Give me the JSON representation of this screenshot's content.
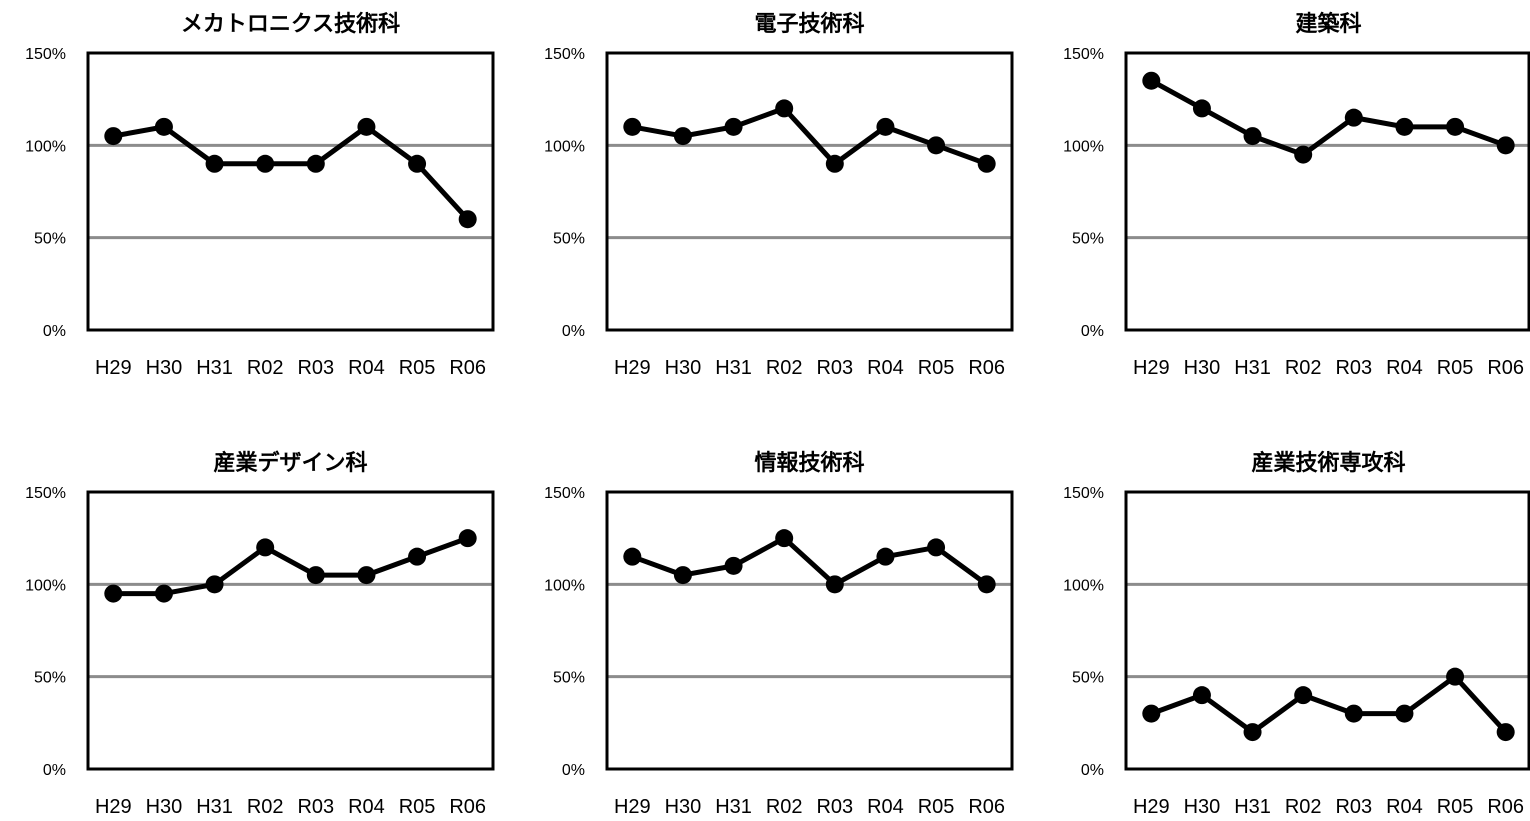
{
  "chart_data": [
    {
      "type": "line",
      "title": "メカトロニクス技術科",
      "categories": [
        "H29",
        "H30",
        "H31",
        "R02",
        "R03",
        "R04",
        "R05",
        "R06"
      ],
      "series": [
        {
          "values": [
            105,
            110,
            90,
            90,
            90,
            110,
            90,
            60
          ]
        }
      ],
      "ylim": [
        0,
        150
      ],
      "yticks": [
        "0%",
        "50%",
        "100%",
        "150%"
      ],
      "grid": true
    },
    {
      "type": "line",
      "title": "電子技術科",
      "categories": [
        "H29",
        "H30",
        "H31",
        "R02",
        "R03",
        "R04",
        "R05",
        "R06"
      ],
      "series": [
        {
          "values": [
            110,
            105,
            110,
            120,
            90,
            110,
            100,
            90
          ]
        }
      ],
      "ylim": [
        0,
        150
      ],
      "yticks": [
        "0%",
        "50%",
        "100%",
        "150%"
      ],
      "grid": true
    },
    {
      "type": "line",
      "title": "建築科",
      "categories": [
        "H29",
        "H30",
        "H31",
        "R02",
        "R03",
        "R04",
        "R05",
        "R06"
      ],
      "series": [
        {
          "values": [
            135,
            120,
            105,
            95,
            115,
            110,
            110,
            100
          ]
        }
      ],
      "ylim": [
        0,
        150
      ],
      "yticks": [
        "0%",
        "50%",
        "100%",
        "150%"
      ],
      "grid": true
    },
    {
      "type": "line",
      "title": "産業デザイン科",
      "categories": [
        "H29",
        "H30",
        "H31",
        "R02",
        "R03",
        "R04",
        "R05",
        "R06"
      ],
      "series": [
        {
          "values": [
            95,
            95,
            100,
            120,
            105,
            105,
            115,
            125
          ]
        }
      ],
      "ylim": [
        0,
        150
      ],
      "yticks": [
        "0%",
        "50%",
        "100%",
        "150%"
      ],
      "grid": true
    },
    {
      "type": "line",
      "title": "情報技術科",
      "categories": [
        "H29",
        "H30",
        "H31",
        "R02",
        "R03",
        "R04",
        "R05",
        "R06"
      ],
      "series": [
        {
          "values": [
            115,
            105,
            110,
            125,
            100,
            115,
            120,
            100
          ]
        }
      ],
      "ylim": [
        0,
        150
      ],
      "yticks": [
        "0%",
        "50%",
        "100%",
        "150%"
      ],
      "grid": true
    },
    {
      "type": "line",
      "title": "産業技術専攻科",
      "categories": [
        "H29",
        "H30",
        "H31",
        "R02",
        "R03",
        "R04",
        "R05",
        "R06"
      ],
      "series": [
        {
          "values": [
            30,
            40,
            20,
            40,
            30,
            30,
            50,
            20
          ]
        }
      ],
      "ylim": [
        0,
        150
      ],
      "yticks": [
        "0%",
        "50%",
        "100%",
        "150%"
      ],
      "grid": true
    }
  ]
}
